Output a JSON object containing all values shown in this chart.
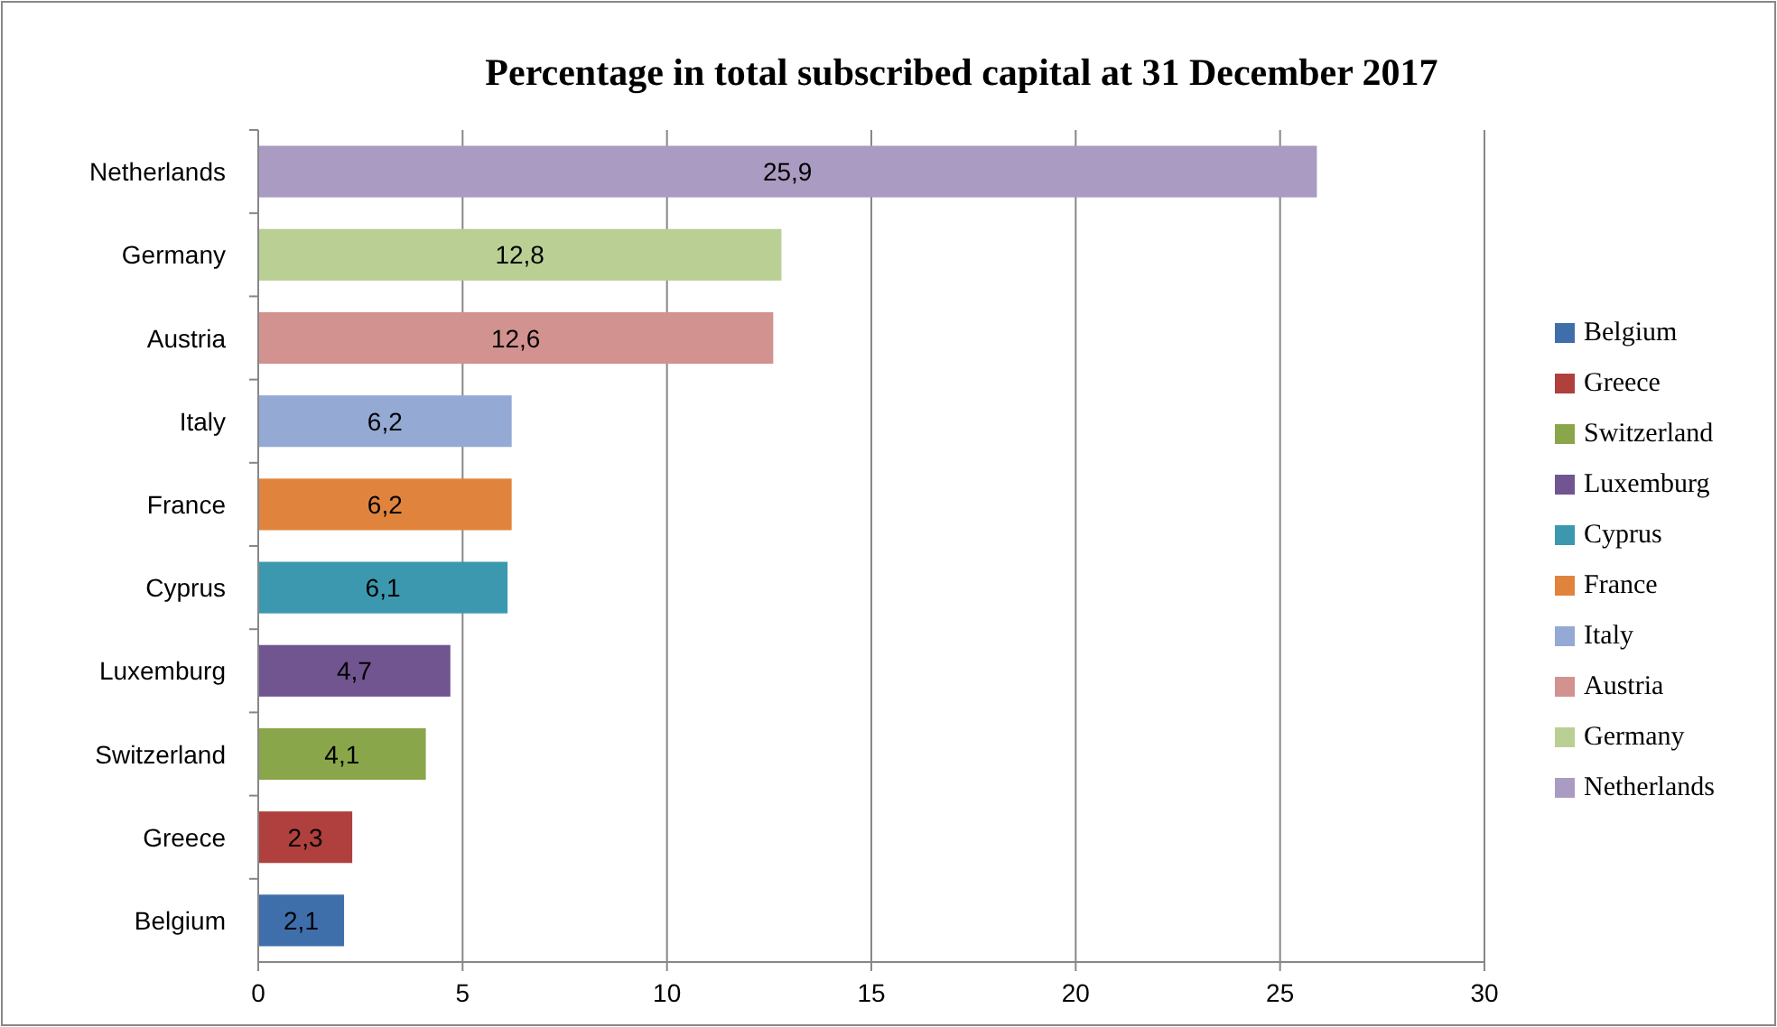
{
  "chart_data": {
    "type": "bar",
    "orientation": "horizontal",
    "title": "Percentage in total subscribed capital at 31 December 2017",
    "categories": [
      "Netherlands",
      "Germany",
      "Austria",
      "Italy",
      "France",
      "Cyprus",
      "Luxemburg",
      "Switzerland",
      "Greece",
      "Belgium"
    ],
    "series": [
      {
        "name": "Belgium",
        "color": "#3e6fab",
        "values": [
          null,
          null,
          null,
          null,
          null,
          null,
          null,
          null,
          null,
          2.1
        ],
        "value_labels": [
          null,
          null,
          null,
          null,
          null,
          null,
          null,
          null,
          null,
          "2,1"
        ]
      },
      {
        "name": "Greece",
        "color": "#b0403e",
        "values": [
          null,
          null,
          null,
          null,
          null,
          null,
          null,
          null,
          2.3,
          null
        ],
        "value_labels": [
          null,
          null,
          null,
          null,
          null,
          null,
          null,
          null,
          "2,3",
          null
        ]
      },
      {
        "name": "Switzerland",
        "color": "#8aa64a",
        "values": [
          null,
          null,
          null,
          null,
          null,
          null,
          null,
          4.1,
          null,
          null
        ],
        "value_labels": [
          null,
          null,
          null,
          null,
          null,
          null,
          null,
          "4,1",
          null,
          null
        ]
      },
      {
        "name": "Luxemburg",
        "color": "#705590",
        "values": [
          null,
          null,
          null,
          null,
          null,
          null,
          4.7,
          null,
          null,
          null
        ],
        "value_labels": [
          null,
          null,
          null,
          null,
          null,
          null,
          "4,7",
          null,
          null,
          null
        ]
      },
      {
        "name": "Cyprus",
        "color": "#3c98ae",
        "values": [
          null,
          null,
          null,
          null,
          null,
          6.1,
          null,
          null,
          null,
          null
        ],
        "value_labels": [
          null,
          null,
          null,
          null,
          null,
          "6,1",
          null,
          null,
          null,
          null
        ]
      },
      {
        "name": "France",
        "color": "#e0843d",
        "values": [
          null,
          null,
          null,
          null,
          6.2,
          null,
          null,
          null,
          null,
          null
        ],
        "value_labels": [
          null,
          null,
          null,
          null,
          "6,2",
          null,
          null,
          null,
          null,
          null
        ]
      },
      {
        "name": "Italy",
        "color": "#94a9d3",
        "values": [
          null,
          null,
          null,
          6.2,
          null,
          null,
          null,
          null,
          null,
          null
        ],
        "value_labels": [
          null,
          null,
          null,
          "6,2",
          null,
          null,
          null,
          null,
          null,
          null
        ]
      },
      {
        "name": "Austria",
        "color": "#d29290",
        "values": [
          null,
          null,
          12.6,
          null,
          null,
          null,
          null,
          null,
          null,
          null
        ],
        "value_labels": [
          null,
          null,
          "12,6",
          null,
          null,
          null,
          null,
          null,
          null,
          null
        ]
      },
      {
        "name": "Germany",
        "color": "#b9cf94",
        "values": [
          null,
          12.8,
          null,
          null,
          null,
          null,
          null,
          null,
          null,
          null
        ],
        "value_labels": [
          null,
          "12,8",
          null,
          null,
          null,
          null,
          null,
          null,
          null,
          null
        ]
      },
      {
        "name": "Netherlands",
        "color": "#a99bc1",
        "values": [
          25.9,
          null,
          null,
          null,
          null,
          null,
          null,
          null,
          null,
          null
        ],
        "value_labels": [
          "25,9",
          null,
          null,
          null,
          null,
          null,
          null,
          null,
          null,
          null
        ]
      }
    ],
    "xlim": [
      0,
      30
    ],
    "xticks": [
      0,
      5,
      10,
      15,
      20,
      25,
      30
    ],
    "grid": "x",
    "legend": "right"
  }
}
